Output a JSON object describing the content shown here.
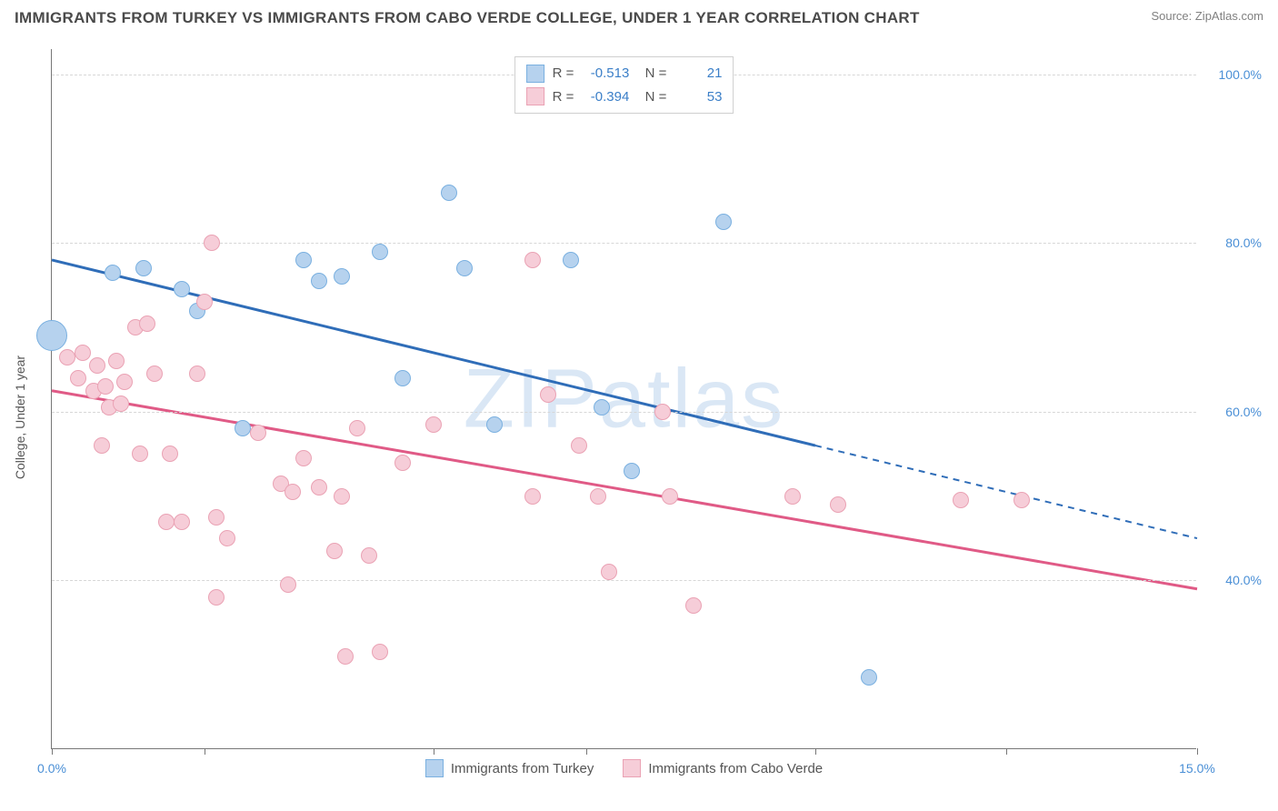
{
  "title": "IMMIGRANTS FROM TURKEY VS IMMIGRANTS FROM CABO VERDE COLLEGE, UNDER 1 YEAR CORRELATION CHART",
  "source": "Source: ZipAtlas.com",
  "watermark": "ZIPatlas",
  "ylabel": "College, Under 1 year",
  "chart": {
    "type": "scatter",
    "background_color": "#ffffff",
    "grid_color": "#d7d7d7",
    "axis_color": "#777777",
    "xlim": [
      0.0,
      15.0
    ],
    "ylim": [
      20.0,
      103.0
    ],
    "x_ticks": [
      0.0,
      2.0,
      5.0,
      7.0,
      10.0,
      12.5,
      15.0
    ],
    "x_tick_labels": {
      "0": "0.0%",
      "15": "15.0%"
    },
    "y_ticks": [
      40.0,
      60.0,
      80.0,
      100.0
    ],
    "y_tick_labels": {
      "40": "40.0%",
      "60": "60.0%",
      "80": "80.0%",
      "100": "100.0%"
    },
    "tick_label_color": "#4a8fd6",
    "tick_label_fontsize": 14,
    "point_radius": 9,
    "series": [
      {
        "name": "Immigrants from Turkey",
        "fill": "#b6d2ee",
        "stroke": "#7ab0e0",
        "line_color": "#2f6db8",
        "line_width": 3,
        "R": "-0.513",
        "N": "21",
        "trend": {
          "x1": 0.0,
          "y1": 78.0,
          "x2": 10.0,
          "y2": 56.0,
          "x_ext": 15.0,
          "y_ext": 45.0
        },
        "points": [
          {
            "x": 0.0,
            "y": 69.0,
            "r": 17
          },
          {
            "x": 0.8,
            "y": 76.5
          },
          {
            "x": 1.2,
            "y": 77.0
          },
          {
            "x": 1.7,
            "y": 74.5
          },
          {
            "x": 1.9,
            "y": 72.0
          },
          {
            "x": 2.5,
            "y": 58.0
          },
          {
            "x": 3.3,
            "y": 78.0
          },
          {
            "x": 3.5,
            "y": 75.5
          },
          {
            "x": 3.8,
            "y": 76.0
          },
          {
            "x": 4.3,
            "y": 79.0
          },
          {
            "x": 4.6,
            "y": 64.0
          },
          {
            "x": 5.2,
            "y": 86.0
          },
          {
            "x": 5.4,
            "y": 77.0
          },
          {
            "x": 5.8,
            "y": 58.5
          },
          {
            "x": 6.8,
            "y": 78.0
          },
          {
            "x": 7.2,
            "y": 60.5
          },
          {
            "x": 7.6,
            "y": 53.0
          },
          {
            "x": 8.8,
            "y": 82.5
          },
          {
            "x": 10.7,
            "y": 28.5
          }
        ]
      },
      {
        "name": "Immigrants from Cabo Verde",
        "fill": "#f6cdd8",
        "stroke": "#eaa2b4",
        "line_color": "#e05a86",
        "line_width": 3,
        "R": "-0.394",
        "N": "53",
        "trend": {
          "x1": 0.0,
          "y1": 62.5,
          "x2": 15.0,
          "y2": 39.0
        },
        "points": [
          {
            "x": 0.2,
            "y": 66.5
          },
          {
            "x": 0.35,
            "y": 64.0
          },
          {
            "x": 0.4,
            "y": 67.0
          },
          {
            "x": 0.55,
            "y": 62.5
          },
          {
            "x": 0.6,
            "y": 65.5
          },
          {
            "x": 0.65,
            "y": 56.0
          },
          {
            "x": 0.7,
            "y": 63.0
          },
          {
            "x": 0.75,
            "y": 60.5
          },
          {
            "x": 0.85,
            "y": 66.0
          },
          {
            "x": 0.9,
            "y": 61.0
          },
          {
            "x": 0.95,
            "y": 63.5
          },
          {
            "x": 1.1,
            "y": 70.0
          },
          {
            "x": 1.15,
            "y": 55.0
          },
          {
            "x": 1.25,
            "y": 70.5
          },
          {
            "x": 1.35,
            "y": 64.5
          },
          {
            "x": 1.5,
            "y": 47.0
          },
          {
            "x": 1.55,
            "y": 55.0
          },
          {
            "x": 1.7,
            "y": 47.0
          },
          {
            "x": 1.9,
            "y": 64.5
          },
          {
            "x": 2.0,
            "y": 73.0
          },
          {
            "x": 2.1,
            "y": 80.0
          },
          {
            "x": 2.15,
            "y": 47.5
          },
          {
            "x": 2.15,
            "y": 38.0
          },
          {
            "x": 2.3,
            "y": 45.0
          },
          {
            "x": 2.7,
            "y": 57.5
          },
          {
            "x": 3.0,
            "y": 51.5
          },
          {
            "x": 3.1,
            "y": 39.5
          },
          {
            "x": 3.15,
            "y": 50.5
          },
          {
            "x": 3.3,
            "y": 54.5
          },
          {
            "x": 3.5,
            "y": 51.0
          },
          {
            "x": 3.7,
            "y": 43.5
          },
          {
            "x": 3.8,
            "y": 50.0
          },
          {
            "x": 3.85,
            "y": 31.0
          },
          {
            "x": 4.0,
            "y": 58.0
          },
          {
            "x": 4.15,
            "y": 43.0
          },
          {
            "x": 4.3,
            "y": 31.5
          },
          {
            "x": 4.6,
            "y": 54.0
          },
          {
            "x": 5.0,
            "y": 58.5
          },
          {
            "x": 6.3,
            "y": 78.0
          },
          {
            "x": 6.3,
            "y": 50.0
          },
          {
            "x": 6.5,
            "y": 62.0
          },
          {
            "x": 6.9,
            "y": 56.0
          },
          {
            "x": 7.15,
            "y": 50.0
          },
          {
            "x": 7.3,
            "y": 41.0
          },
          {
            "x": 8.0,
            "y": 60.0
          },
          {
            "x": 8.1,
            "y": 50.0
          },
          {
            "x": 8.4,
            "y": 37.0
          },
          {
            "x": 9.7,
            "y": 50.0
          },
          {
            "x": 10.3,
            "y": 49.0
          },
          {
            "x": 11.9,
            "y": 49.5
          },
          {
            "x": 12.7,
            "y": 49.5
          }
        ]
      }
    ]
  },
  "legend_top": {
    "R_label": "R =",
    "N_label": "N ="
  },
  "legend_bottom": [
    {
      "name": "Immigrants from Turkey",
      "fill": "#b6d2ee",
      "stroke": "#7ab0e0"
    },
    {
      "name": "Immigrants from Cabo Verde",
      "fill": "#f6cdd8",
      "stroke": "#eaa2b4"
    }
  ]
}
